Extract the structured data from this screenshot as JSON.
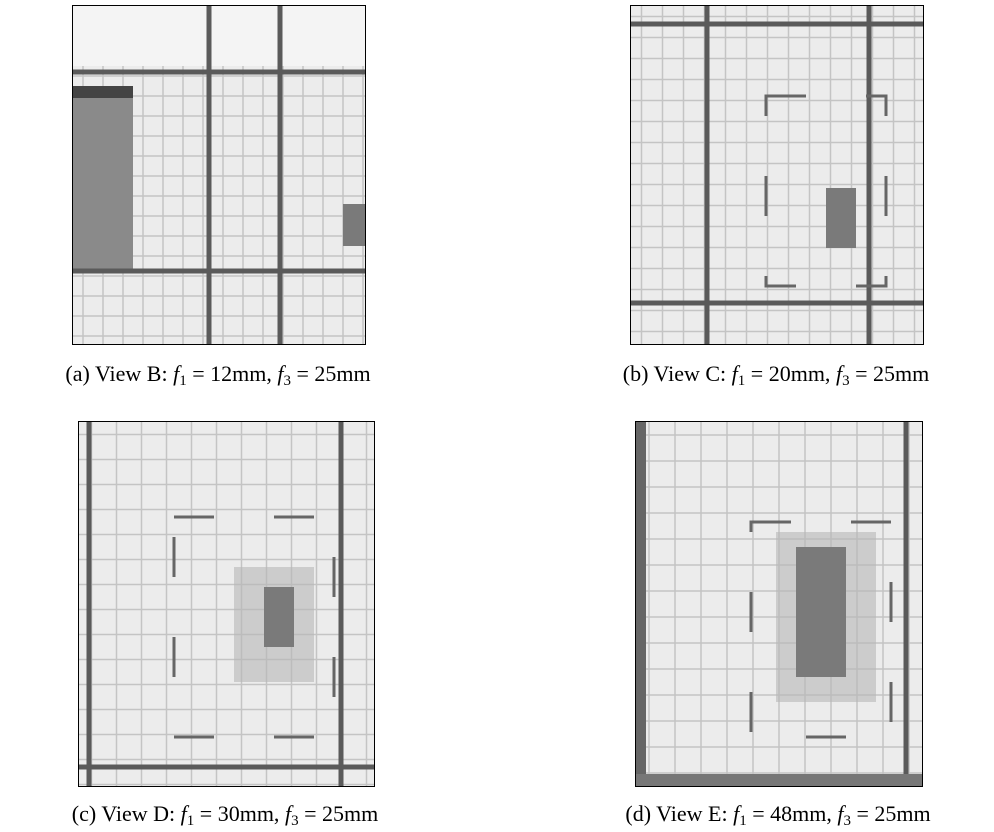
{
  "figures": [
    {
      "label": "(a)",
      "view": "View B:",
      "terms": [
        {
          "var": "f",
          "sub": "1",
          "rest": " = 12mm,"
        },
        {
          "var": "f",
          "sub": "3",
          "rest": " = 25mm"
        }
      ]
    },
    {
      "label": "(b)",
      "view": "View C:",
      "terms": [
        {
          "var": "f",
          "sub": "1",
          "rest": " = 20mm,"
        },
        {
          "var": "f",
          "sub": "3",
          "rest": " = 25mm"
        }
      ]
    },
    {
      "label": "(c)",
      "view": "View D:",
      "terms": [
        {
          "var": "f",
          "sub": "1",
          "rest": " = 30mm,"
        },
        {
          "var": "f",
          "sub": "3",
          "rest": " = 25mm"
        }
      ]
    },
    {
      "label": "(d)",
      "view": "View E:",
      "terms": [
        {
          "var": "f",
          "sub": "1",
          "rest": " = 48mm,"
        },
        {
          "var": "f",
          "sub": "3",
          "rest": " = 25mm"
        }
      ]
    }
  ]
}
